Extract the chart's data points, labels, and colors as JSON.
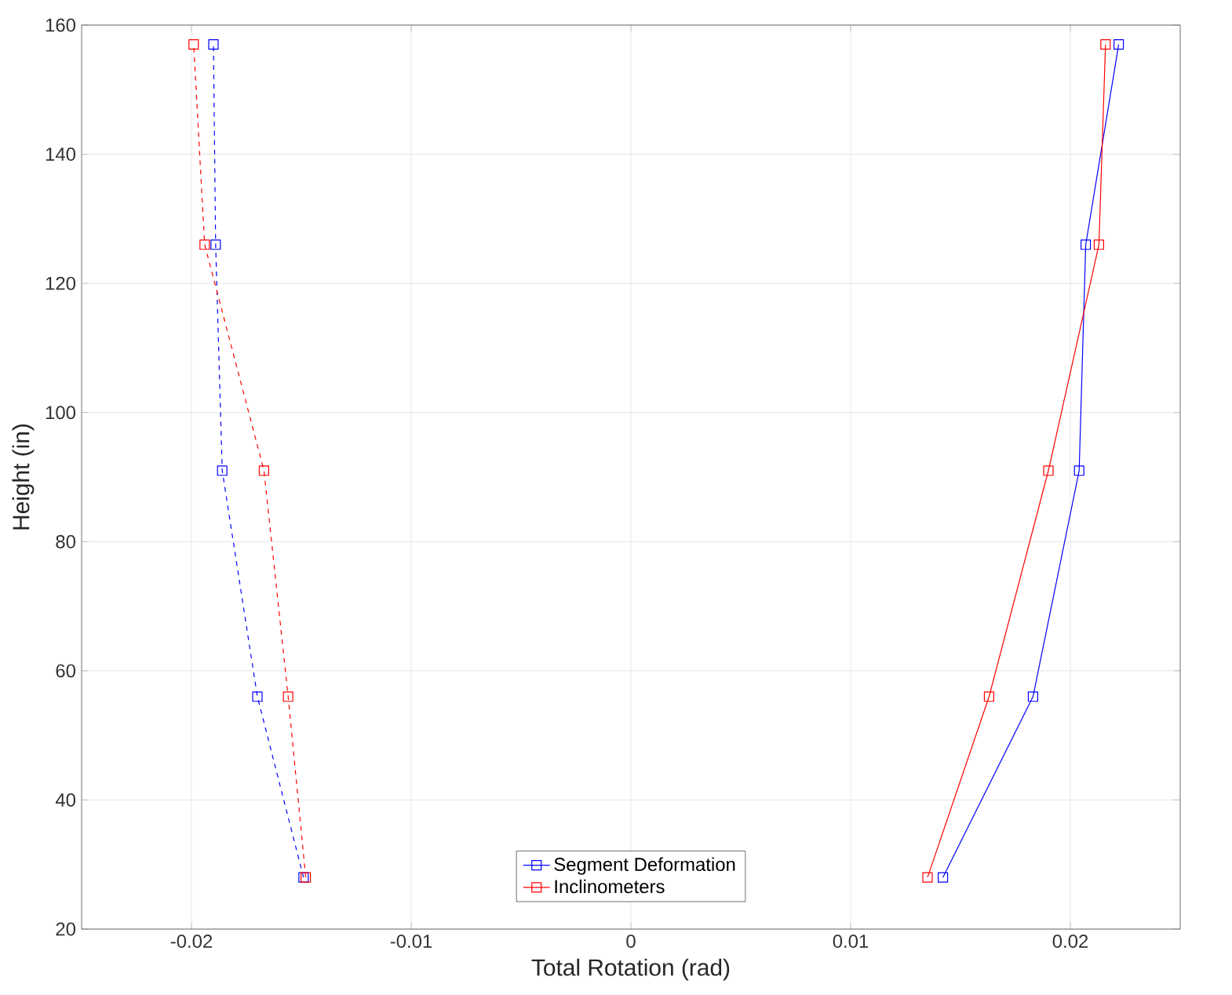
{
  "chart_data": {
    "type": "line",
    "xlabel": "Total Rotation (rad)",
    "ylabel": "Height (in)",
    "xlim": [
      -0.025,
      0.025
    ],
    "xticks": [
      -0.02,
      -0.01,
      0,
      0.01,
      0.02
    ],
    "ylim": [
      20,
      160
    ],
    "yticks": [
      20,
      40,
      60,
      80,
      100,
      120,
      140,
      160
    ],
    "grid": true,
    "legend": "bottom",
    "marker": "square",
    "series": [
      {
        "name": "Segment Deformation",
        "color": "#0000ff",
        "line_style": "solid",
        "x": [
          0.0142,
          0.0183,
          0.0204,
          0.0207,
          0.0222
        ],
        "values": [
          28,
          56,
          91,
          126,
          157
        ]
      },
      {
        "name": "Inclinometers",
        "color": "#ff0000",
        "line_style": "solid",
        "x": [
          0.0135,
          0.0163,
          0.019,
          0.0213,
          0.0216
        ],
        "values": [
          28,
          56,
          91,
          126,
          157
        ]
      },
      {
        "color": "#0000ff",
        "line_style": "dashed",
        "x": [
          -0.0149,
          -0.017,
          -0.0186,
          -0.0189,
          -0.019
        ],
        "values": [
          28,
          56,
          91,
          126,
          157
        ]
      },
      {
        "color": "#ff0000",
        "line_style": "dashed",
        "x": [
          -0.0148,
          -0.0156,
          -0.0167,
          -0.0194,
          -0.0199
        ],
        "values": [
          28,
          56,
          91,
          126,
          157
        ]
      }
    ]
  }
}
